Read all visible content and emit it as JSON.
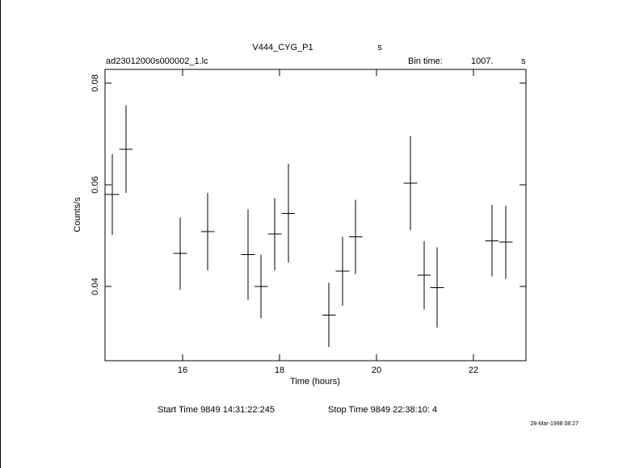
{
  "chart_data": {
    "type": "errorbar",
    "title": "V444_CYG_P1",
    "title_unit": "s",
    "file_name": "ad23012000s000002_1.lc",
    "bin_time_label": "Bin time:",
    "bin_time": "1007.",
    "bin_time_unit": "s",
    "y_label": "Counts/s",
    "x_label": "Time (hours)",
    "start_time": "Start Time  9849 14:31:22:245",
    "stop_time": "Stop Time  9849 22:38:10:  4",
    "date_stamp": "28-Mar-1998 08:27",
    "color": "#000000",
    "x": [
      14.55,
      14.83,
      15.95,
      16.52,
      17.35,
      17.62,
      17.9,
      18.18,
      19.02,
      19.3,
      19.57,
      20.7,
      20.98,
      21.25,
      22.38,
      22.67
    ],
    "values": [
      0.0581,
      0.067,
      0.0465,
      0.0508,
      0.0463,
      0.04,
      0.0503,
      0.0544,
      0.0344,
      0.043,
      0.0498,
      0.0603,
      0.0422,
      0.0398,
      0.049,
      0.0487
    ],
    "errors": [
      0.0079,
      0.0086,
      0.0071,
      0.0076,
      0.0089,
      0.0063,
      0.0071,
      0.0097,
      0.0063,
      0.0068,
      0.0073,
      0.0093,
      0.0067,
      0.0079,
      0.007,
      0.0072
    ],
    "xerr": 0.14,
    "xlim": [
      14.4,
      23.083
    ],
    "ylim": [
      0.0254,
      0.0827
    ],
    "xticks": [
      16,
      18,
      20,
      22
    ],
    "yticks": [
      0.04,
      0.06,
      0.08
    ]
  }
}
